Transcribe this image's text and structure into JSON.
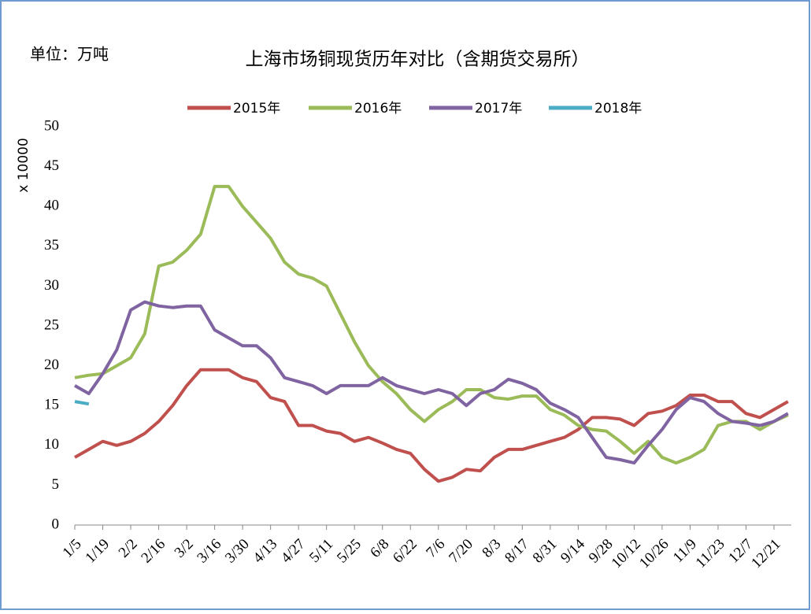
{
  "chart_data": {
    "type": "line",
    "title": "上海市场铜现货历年对比（含期货交易所）",
    "unit_label": "单位：万吨",
    "ylabel": "x 10000",
    "legend": "top",
    "categories": [
      "1/5",
      null,
      "1/19",
      null,
      "2/2",
      null,
      "2/16",
      null,
      "3/2",
      null,
      "3/16",
      null,
      "3/30",
      null,
      "4/13",
      null,
      "4/27",
      null,
      "5/11",
      null,
      "5/25",
      null,
      "6/8",
      null,
      "6/22",
      null,
      "7/6",
      null,
      "7/20",
      null,
      "8/3",
      null,
      "8/17",
      null,
      "8/31",
      null,
      "9/14",
      null,
      "9/28",
      null,
      "10/12",
      null,
      "10/26",
      null,
      "11/9",
      null,
      "11/23",
      null,
      "12/7",
      null,
      "12/21",
      null
    ],
    "series": [
      {
        "name": "2015年",
        "color": "#c0504d",
        "values": [
          8.5,
          9.5,
          10.5,
          10,
          10.5,
          11.5,
          13,
          15,
          17.5,
          19.5,
          19.5,
          19.5,
          18.5,
          18,
          16,
          15.5,
          12.5,
          12.5,
          11.8,
          11.5,
          10.5,
          11,
          10.3,
          9.5,
          9,
          7,
          5.5,
          6,
          7,
          6.8,
          8.5,
          9.5,
          9.5,
          10,
          10.5,
          11,
          12,
          13.5,
          13.5,
          13.3,
          12.5,
          14,
          14.3,
          15,
          16.3,
          16.3,
          15.5,
          15.5,
          14,
          13.5,
          14.5,
          15.5
        ]
      },
      {
        "name": "2016年",
        "color": "#9bbb59",
        "values": [
          18.5,
          18.8,
          19,
          20,
          21,
          24,
          32.5,
          33,
          34.5,
          36.5,
          42.5,
          42.5,
          40,
          38,
          36,
          33,
          31.5,
          31,
          30,
          26.5,
          23,
          20,
          18,
          16.5,
          14.5,
          13,
          14.5,
          15.5,
          17,
          17,
          16,
          15.8,
          16.2,
          16.2,
          14.5,
          13.8,
          12.5,
          12,
          11.8,
          10.5,
          9,
          10.5,
          8.5,
          7.8,
          8.5,
          9.5,
          12.5,
          13,
          13,
          12,
          13,
          13.8
        ]
      },
      {
        "name": "2017年",
        "color": "#8064a2",
        "values": [
          17.5,
          16.5,
          19,
          22,
          27,
          28,
          27.5,
          27.3,
          27.5,
          27.5,
          24.5,
          23.5,
          22.5,
          22.5,
          21,
          18.5,
          18,
          17.5,
          16.5,
          17.5,
          17.5,
          17.5,
          18.5,
          17.5,
          17,
          16.5,
          17,
          16.5,
          15,
          16.5,
          17,
          18.3,
          17.8,
          17,
          15.3,
          14.5,
          13.5,
          11,
          8.5,
          8.2,
          7.8,
          10,
          12,
          14.5,
          16,
          15.5,
          14,
          13,
          12.8,
          12.5,
          13,
          14
        ]
      },
      {
        "name": "2018年",
        "color": "#4bacc6",
        "values": [
          15.5,
          15.2,
          null,
          null,
          null,
          null,
          null,
          null,
          null,
          null,
          null,
          null,
          null,
          null,
          null,
          null,
          null,
          null,
          null,
          null,
          null,
          null,
          null,
          null,
          null,
          null,
          null,
          null,
          null,
          null,
          null,
          null,
          null,
          null,
          null,
          null,
          null,
          null,
          null,
          null,
          null,
          null,
          null,
          null,
          null,
          null,
          null,
          null,
          null,
          null,
          null,
          null
        ]
      }
    ],
    "ylim": [
      0,
      50
    ],
    "yticks": [
      0,
      5,
      10,
      15,
      20,
      25,
      30,
      35,
      40,
      45,
      50
    ],
    "grid": false
  }
}
